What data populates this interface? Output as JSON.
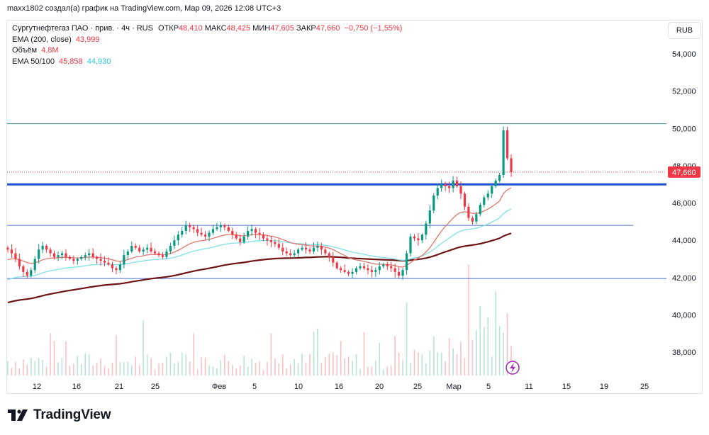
{
  "header": {
    "caption": "maxx1802 создал(а) график на TradingView.com, Мар 09, 2026 12:08 UTC+3"
  },
  "legend": {
    "symbol": "Сургутнефтегаз ПАО · прив. · 4ч · RUS",
    "open_label": "ОТКР",
    "open": "48,410",
    "high_label": "МАКС",
    "high": "48,425",
    "low_label": "МИН",
    "low": "47,605",
    "close_label": "ЗАКР",
    "close": "47,660",
    "change": "−0,750 (−1,55%)",
    "ema200_label": "EMA (200, close)",
    "ema200_value": "43,999",
    "volume_label": "Объём",
    "volume_value": "4,8M",
    "ema50_100_label": "EMA 50/100",
    "ema50_value": "45,858",
    "ema100_value": "44,930"
  },
  "toolbar": {
    "currency": "RUB"
  },
  "brand": {
    "name": "TradingView"
  },
  "colors": {
    "up": "#089981",
    "down": "#f23645",
    "ema50": "#e0776f",
    "ema100": "#7fe0e8",
    "ema200": "#6d1414",
    "level_thick": "#1e4fcf",
    "level_thin": "#4a6fd1",
    "level_top": "#3d8a8c",
    "price_tag": "#f23645"
  },
  "chart_data": {
    "type": "candlestick",
    "timeframe": "4h",
    "y_range": [
      37000,
      55000
    ],
    "y_ticks": [
      38000,
      40000,
      42000,
      44000,
      46000,
      48000,
      50000,
      52000,
      54000
    ],
    "y_tick_labels": [
      "38,000",
      "40,000",
      "42,000",
      "44,000",
      "46,000",
      "48,000",
      "50,000",
      "52,000",
      "54,000"
    ],
    "x_tick_labels": [
      "12",
      "16",
      "21",
      "25",
      "Фев",
      "5",
      "10",
      "16",
      "20",
      "25",
      "Мар",
      "5",
      "11",
      "15",
      "19",
      "25"
    ],
    "last_price": 47660,
    "last_price_label": "47,660",
    "horizontal_levels": [
      {
        "value": 50250,
        "style": "thin-top"
      },
      {
        "value": 47000,
        "style": "thick"
      },
      {
        "value": 44800,
        "style": "thin"
      },
      {
        "value": 41950,
        "style": "thin"
      }
    ],
    "close_path": [
      43500,
      43300,
      43000,
      42600,
      42300,
      42100,
      42400,
      43000,
      43500,
      43700,
      43500,
      43300,
      43100,
      43200,
      43300,
      43100,
      43000,
      42900,
      43000,
      43100,
      43200,
      43300,
      43100,
      43000,
      42900,
      42800,
      42700,
      42500,
      42400,
      42700,
      43200,
      43400,
      43700,
      43600,
      43400,
      43500,
      43600,
      43400,
      43300,
      43200,
      43100,
      43400,
      43700,
      44000,
      44300,
      44500,
      44800,
      44700,
      44600,
      44400,
      44300,
      44200,
      44400,
      44600,
      44700,
      44800,
      44700,
      44500,
      44300,
      44100,
      43900,
      44200,
      44500,
      44600,
      44400,
      44300,
      44100,
      44000,
      43900,
      43800,
      43600,
      43400,
      43300,
      43200,
      43300,
      43500,
      43600,
      43500,
      43400,
      43600,
      43700,
      43500,
      43300,
      43100,
      42800,
      42500,
      42400,
      42300,
      42200,
      42300,
      42500,
      42600,
      42500,
      42400,
      42300,
      42400,
      42600,
      42700,
      42600,
      42500,
      42300,
      42100,
      42400,
      43300,
      44200,
      44100,
      44000,
      44300,
      44900,
      45600,
      46400,
      46800,
      47000,
      46900,
      46800,
      47200,
      46900,
      46500,
      45800,
      45200,
      45000,
      45400,
      45900,
      46300,
      46500,
      46900,
      47200,
      47500,
      49900,
      48400,
      47660
    ],
    "series": [
      {
        "name": "EMA 50",
        "value": 45858
      },
      {
        "name": "EMA 100",
        "value": 44930
      },
      {
        "name": "EMA 200",
        "value": 43999
      }
    ]
  }
}
